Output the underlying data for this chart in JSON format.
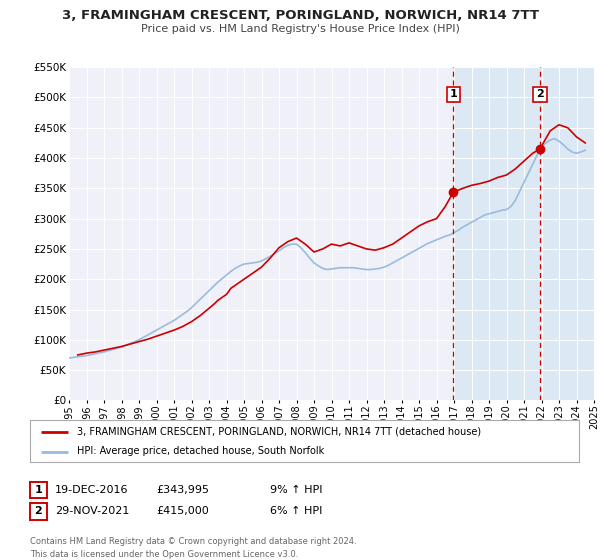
{
  "title": "3, FRAMINGHAM CRESCENT, PORINGLAND, NORWICH, NR14 7TT",
  "subtitle": "Price paid vs. HM Land Registry's House Price Index (HPI)",
  "ylim": [
    0,
    550000
  ],
  "xlim": [
    1995,
    2025
  ],
  "yticks": [
    0,
    50000,
    100000,
    150000,
    200000,
    250000,
    300000,
    350000,
    400000,
    450000,
    500000,
    550000
  ],
  "ytick_labels": [
    "£0",
    "£50K",
    "£100K",
    "£150K",
    "£200K",
    "£250K",
    "£300K",
    "£350K",
    "£400K",
    "£450K",
    "£500K",
    "£550K"
  ],
  "xticks": [
    1995,
    1996,
    1997,
    1998,
    1999,
    2000,
    2001,
    2002,
    2003,
    2004,
    2005,
    2006,
    2007,
    2008,
    2009,
    2010,
    2011,
    2012,
    2013,
    2014,
    2015,
    2016,
    2017,
    2018,
    2019,
    2020,
    2021,
    2022,
    2023,
    2024,
    2025
  ],
  "red_line_color": "#cc0000",
  "blue_line_color": "#99bbdd",
  "marker_color": "#cc0000",
  "vline_color": "#cc0000",
  "background_color": "#ffffff",
  "plot_bg_color": "#f0f0f8",
  "grid_color": "#ffffff",
  "legend_label_red": "3, FRAMINGHAM CRESCENT, PORINGLAND, NORWICH, NR14 7TT (detached house)",
  "legend_label_blue": "HPI: Average price, detached house, South Norfolk",
  "ann1_number": "1",
  "ann1_date": "19-DEC-2016",
  "ann1_price": "£343,995",
  "ann1_hpi": "9% ↑ HPI",
  "ann1_x": 2016.97,
  "ann1_y": 343995,
  "ann2_number": "2",
  "ann2_date": "29-NOV-2021",
  "ann2_price": "£415,000",
  "ann2_hpi": "6% ↑ HPI",
  "ann2_x": 2021.91,
  "ann2_y": 415000,
  "copyright": "Contains HM Land Registry data © Crown copyright and database right 2024.\nThis data is licensed under the Open Government Licence v3.0.",
  "hpi_x": [
    1995.0,
    1995.25,
    1995.5,
    1995.75,
    1996.0,
    1996.25,
    1996.5,
    1996.75,
    1997.0,
    1997.25,
    1997.5,
    1997.75,
    1998.0,
    1998.25,
    1998.5,
    1998.75,
    1999.0,
    1999.25,
    1999.5,
    1999.75,
    2000.0,
    2000.25,
    2000.5,
    2000.75,
    2001.0,
    2001.25,
    2001.5,
    2001.75,
    2002.0,
    2002.25,
    2002.5,
    2002.75,
    2003.0,
    2003.25,
    2003.5,
    2003.75,
    2004.0,
    2004.25,
    2004.5,
    2004.75,
    2005.0,
    2005.25,
    2005.5,
    2005.75,
    2006.0,
    2006.25,
    2006.5,
    2006.75,
    2007.0,
    2007.25,
    2007.5,
    2007.75,
    2008.0,
    2008.25,
    2008.5,
    2008.75,
    2009.0,
    2009.25,
    2009.5,
    2009.75,
    2010.0,
    2010.25,
    2010.5,
    2010.75,
    2011.0,
    2011.25,
    2011.5,
    2011.75,
    2012.0,
    2012.25,
    2012.5,
    2012.75,
    2013.0,
    2013.25,
    2013.5,
    2013.75,
    2014.0,
    2014.25,
    2014.5,
    2014.75,
    2015.0,
    2015.25,
    2015.5,
    2015.75,
    2016.0,
    2016.25,
    2016.5,
    2016.75,
    2017.0,
    2017.25,
    2017.5,
    2017.75,
    2018.0,
    2018.25,
    2018.5,
    2018.75,
    2019.0,
    2019.25,
    2019.5,
    2019.75,
    2020.0,
    2020.25,
    2020.5,
    2020.75,
    2021.0,
    2021.25,
    2021.5,
    2021.75,
    2022.0,
    2022.25,
    2022.5,
    2022.75,
    2023.0,
    2023.25,
    2023.5,
    2023.75,
    2024.0,
    2024.25,
    2024.5
  ],
  "hpi_y": [
    70000,
    71000,
    72000,
    73000,
    74000,
    75500,
    77000,
    78500,
    80000,
    82000,
    84000,
    86000,
    88000,
    91000,
    94000,
    97000,
    100000,
    104000,
    108000,
    112000,
    116000,
    120000,
    124000,
    128000,
    132000,
    137000,
    142000,
    147000,
    153000,
    160000,
    167000,
    174000,
    181000,
    188000,
    195000,
    201000,
    207000,
    213000,
    218000,
    222000,
    225000,
    226000,
    227000,
    228000,
    230000,
    234000,
    238000,
    242000,
    247000,
    252000,
    256000,
    258000,
    258000,
    252000,
    244000,
    235000,
    227000,
    222000,
    218000,
    216000,
    217000,
    218000,
    219000,
    219000,
    219000,
    219000,
    218000,
    217000,
    216000,
    216000,
    217000,
    218000,
    220000,
    223000,
    227000,
    231000,
    235000,
    239000,
    243000,
    247000,
    251000,
    255000,
    259000,
    262000,
    265000,
    268000,
    271000,
    273000,
    277000,
    281000,
    286000,
    290000,
    294000,
    298000,
    302000,
    306000,
    308000,
    310000,
    312000,
    314000,
    315000,
    320000,
    330000,
    345000,
    360000,
    375000,
    390000,
    405000,
    418000,
    425000,
    430000,
    432000,
    428000,
    422000,
    415000,
    410000,
    408000,
    410000,
    413000
  ],
  "price_x": [
    1995.5,
    1996.0,
    1996.5,
    1997.0,
    1997.5,
    1998.0,
    1998.5,
    1999.0,
    1999.5,
    2000.0,
    2000.5,
    2001.0,
    2001.5,
    2002.0,
    2002.5,
    2003.0,
    2003.25,
    2003.5,
    2004.0,
    2004.25,
    2005.0,
    2005.5,
    2006.0,
    2006.5,
    2007.0,
    2007.5,
    2008.0,
    2008.5,
    2009.0,
    2009.5,
    2010.0,
    2010.5,
    2011.0,
    2011.5,
    2012.0,
    2012.5,
    2013.0,
    2013.5,
    2014.0,
    2014.5,
    2015.0,
    2015.5,
    2016.0,
    2016.5,
    2016.97,
    2017.5,
    2018.0,
    2018.5,
    2019.0,
    2019.5,
    2020.0,
    2020.5,
    2021.0,
    2021.5,
    2021.91,
    2022.5,
    2023.0,
    2023.5,
    2024.0,
    2024.5
  ],
  "price_y": [
    75000,
    78000,
    80000,
    83000,
    86000,
    89000,
    93000,
    97000,
    101000,
    106000,
    111000,
    116000,
    122000,
    130000,
    140000,
    152000,
    158000,
    165000,
    175000,
    185000,
    200000,
    210000,
    220000,
    235000,
    252000,
    262000,
    268000,
    258000,
    245000,
    250000,
    258000,
    255000,
    260000,
    255000,
    250000,
    248000,
    252000,
    258000,
    268000,
    278000,
    288000,
    295000,
    300000,
    320000,
    343995,
    350000,
    355000,
    358000,
    362000,
    368000,
    372000,
    382000,
    395000,
    408000,
    415000,
    445000,
    455000,
    450000,
    435000,
    425000
  ]
}
